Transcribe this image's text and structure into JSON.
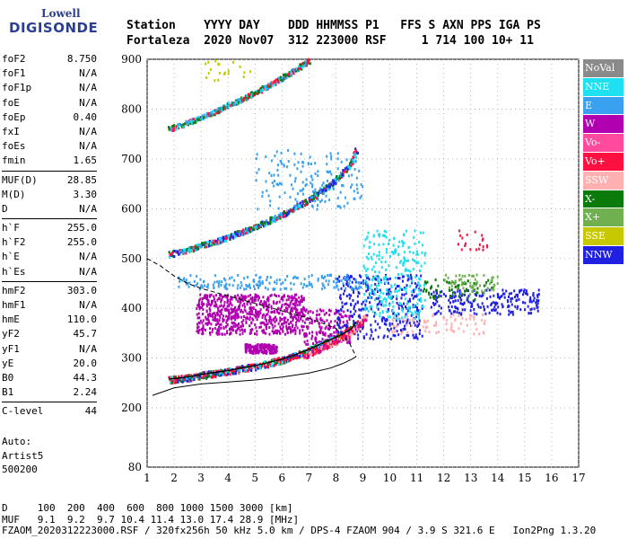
{
  "logo": {
    "line1": "Lowell",
    "line2": "DIGISONDE"
  },
  "header": {
    "line1": "Station    YYYY DAY    DDD HHMMSS P1   FFS S AXN PPS IGA PS",
    "line2": "Fortaleza  2020 Nov07  312 223000 RSF     1 714 100 10+ 11"
  },
  "params": [
    [
      [
        "foF2",
        "8.750"
      ],
      [
        "foF1",
        "N/A"
      ],
      [
        "foF1p",
        "N/A"
      ],
      [
        "foE",
        "N/A"
      ],
      [
        "foEp",
        "0.40"
      ],
      [
        "fxI",
        "N/A"
      ],
      [
        "foEs",
        "N/A"
      ],
      [
        "fmin",
        "1.65"
      ]
    ],
    [
      [
        "MUF(D)",
        "28.85"
      ],
      [
        "M(D)",
        "3.30"
      ],
      [
        "D",
        "N/A"
      ]
    ],
    [
      [
        "h`F",
        "255.0"
      ],
      [
        "h`F2",
        "255.0"
      ],
      [
        "h`E",
        "N/A"
      ],
      [
        "h`Es",
        "N/A"
      ]
    ],
    [
      [
        "hmF2",
        "303.0"
      ],
      [
        "hmF1",
        "N/A"
      ],
      [
        "hmE",
        "110.0"
      ],
      [
        "yF2",
        "45.7"
      ],
      [
        "yF1",
        "N/A"
      ],
      [
        "yE",
        "20.0"
      ],
      [
        "B0",
        "44.3"
      ],
      [
        "B1",
        "2.24"
      ]
    ],
    [
      [
        "C-level",
        "44"
      ]
    ]
  ],
  "extra": {
    "line1": "Auto:",
    "line2": "Artist5",
    "line3": "500200"
  },
  "legend": [
    {
      "label": "NoVal",
      "color": "#8a8a8a"
    },
    {
      "label": "NNE",
      "color": "#1ee0f0"
    },
    {
      "label": "E",
      "color": "#3aa0f0"
    },
    {
      "label": "W",
      "color": "#b000b0"
    },
    {
      "label": "Vo-",
      "color": "#ff4aa0"
    },
    {
      "label": "Vo+",
      "color": "#ff1040"
    },
    {
      "label": "SSW",
      "color": "#ffb0b0"
    },
    {
      "label": "X-",
      "color": "#0a7a0a"
    },
    {
      "label": "X+",
      "color": "#70b050"
    },
    {
      "label": "SSE",
      "color": "#c8c800"
    },
    {
      "label": "NNW",
      "color": "#2020e0"
    }
  ],
  "footer": {
    "line1": "D     100  200  400  600  800 1000 1500 3000 [km]",
    "line2": "MUF   9.1  9.2  9.7 10.4 11.4 13.0 17.4 28.9 [MHz]",
    "line3": "FZAOM_2020312223000.RSF / 320fx256h 50 kHz 5.0 km / DPS-4 FZAOM 904 / 3.9 S 321.6 E   Ion2Png 1.3.20"
  },
  "chart_data": {
    "type": "scatter",
    "xlim": [
      1,
      17
    ],
    "ylim": [
      80,
      900
    ],
    "xticks": [
      1,
      2,
      3,
      4,
      5,
      6,
      7,
      8,
      9,
      10,
      11,
      12,
      13,
      14,
      15,
      16,
      17
    ],
    "yticks": [
      80,
      200,
      300,
      400,
      500,
      600,
      700,
      800,
      900
    ],
    "grid": true,
    "legend_position": "right",
    "o_trace": {
      "x": [
        1.8,
        2.2,
        2.6,
        3.0,
        3.5,
        4.0,
        4.5,
        5.0,
        5.5,
        6.0,
        6.5,
        7.0,
        7.5,
        8.0,
        8.3,
        8.6,
        8.75
      ],
      "y": [
        258,
        260,
        263,
        267,
        271,
        275,
        280,
        285,
        291,
        298,
        307,
        318,
        330,
        342,
        350,
        360,
        372
      ]
    },
    "o_trace_2x": {
      "x": [
        1.8,
        2.5,
        3.0,
        3.5,
        4.0,
        4.5,
        5.0,
        5.5,
        6.0,
        6.5,
        7.0,
        7.5,
        8.0,
        8.5,
        8.75
      ],
      "y": [
        510,
        520,
        528,
        536,
        545,
        555,
        565,
        577,
        590,
        605,
        620,
        640,
        660,
        690,
        720
      ]
    },
    "o_trace_3x": {
      "x": [
        1.8,
        2.5,
        3.0,
        3.5,
        4.0,
        4.5,
        5.0,
        5.5,
        6.0,
        6.5,
        7.0
      ],
      "y": [
        762,
        775,
        785,
        797,
        810,
        822,
        835,
        850,
        865,
        882,
        900
      ]
    },
    "x_trace": {
      "x": [
        6.8,
        7.2,
        7.6,
        8.0,
        8.4,
        8.8,
        9.1
      ],
      "y": [
        305,
        315,
        325,
        335,
        348,
        365,
        385
      ]
    },
    "profile_solid": {
      "x": [
        1.2,
        2.0,
        3.0,
        4.0,
        5.0,
        6.0,
        7.0,
        7.8,
        8.3,
        8.6,
        8.75
      ],
      "y": [
        225,
        240,
        248,
        252,
        256,
        262,
        270,
        280,
        290,
        298,
        303
      ]
    },
    "profile_dashed": {
      "x": [
        1.0,
        1.5,
        2.0,
        2.5,
        3.0,
        4.0,
        5.0,
        6.0,
        7.0,
        8.0,
        8.5,
        8.75
      ],
      "y": [
        500,
        485,
        465,
        450,
        440,
        425,
        410,
        395,
        380,
        360,
        330,
        303
      ]
    },
    "scatter_groups": [
      {
        "color": "#b000b0",
        "x_range": [
          2.8,
          6.8
        ],
        "y_range": [
          350,
          430
        ],
        "n": 700
      },
      {
        "color": "#b000b0",
        "x_range": [
          4.6,
          5.8
        ],
        "y_range": [
          312,
          330
        ],
        "n": 160
      },
      {
        "color": "#b000b0",
        "x_range": [
          6.8,
          8.5
        ],
        "y_range": [
          330,
          400
        ],
        "n": 160
      },
      {
        "color": "#2020e0",
        "x_range": [
          8.0,
          11.2
        ],
        "y_range": [
          340,
          470
        ],
        "n": 340
      },
      {
        "color": "#1ee0f0",
        "x_range": [
          9.0,
          11.3
        ],
        "y_range": [
          380,
          560
        ],
        "n": 260
      },
      {
        "color": "#3aa0f0",
        "x_range": [
          2.0,
          9.0
        ],
        "y_range": [
          440,
          470
        ],
        "n": 180
      },
      {
        "color": "#3aa0f0",
        "x_range": [
          5.0,
          9.0
        ],
        "y_range": [
          600,
          720
        ],
        "n": 160
      },
      {
        "color": "#2020e0",
        "x_range": [
          11.5,
          15.5
        ],
        "y_range": [
          390,
          440
        ],
        "n": 220
      },
      {
        "color": "#0a7a0a",
        "x_range": [
          11.2,
          13.8
        ],
        "y_range": [
          420,
          460
        ],
        "n": 60
      },
      {
        "color": "#70b050",
        "x_range": [
          12.0,
          14.0
        ],
        "y_range": [
          430,
          470
        ],
        "n": 60
      },
      {
        "color": "#ffb0b0",
        "x_range": [
          10.0,
          13.5
        ],
        "y_range": [
          350,
          390
        ],
        "n": 80
      },
      {
        "color": "#ff1040",
        "x_range": [
          12.5,
          13.6
        ],
        "y_range": [
          520,
          560
        ],
        "n": 20
      },
      {
        "color": "#c8c800",
        "x_range": [
          3.0,
          5.0
        ],
        "y_range": [
          860,
          900
        ],
        "n": 20
      }
    ]
  }
}
